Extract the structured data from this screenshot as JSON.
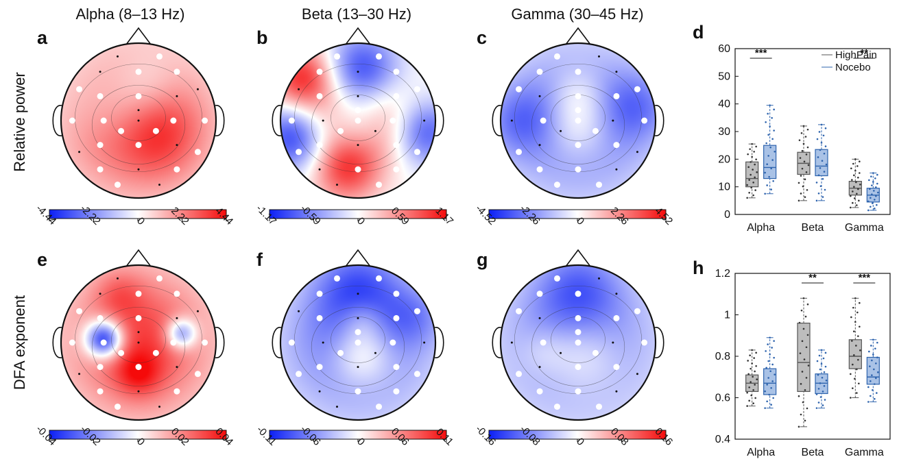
{
  "columns": [
    "Alpha (8–13 Hz)",
    "Beta (13–30 Hz)",
    "Gamma (30–45 Hz)"
  ],
  "rows": [
    "Relative power",
    "DFA exponent"
  ],
  "topomaps": [
    {
      "letter": "a",
      "band": "Alpha",
      "cmax": 4.44,
      "ticks": [
        "-4.44",
        "-2.22",
        "0",
        "2.22",
        "4.44"
      ],
      "blobs": [
        [
          0,
          0,
          3.2,
          0.95
        ],
        [
          0.25,
          0.2,
          1.4,
          0.3
        ],
        [
          -0.25,
          -0.05,
          -1.5,
          0.28
        ],
        [
          0.12,
          -0.45,
          -1.2,
          0.18
        ],
        [
          -0.5,
          0.25,
          0.5,
          0.25
        ]
      ]
    },
    {
      "letter": "b",
      "band": "Beta",
      "cmax": 1.17,
      "ticks": [
        "-1.17",
        "-0.59",
        "0",
        "0.59",
        "1.17"
      ],
      "blobs": [
        [
          -0.72,
          -0.55,
          1.0,
          0.18
        ],
        [
          0.05,
          -0.68,
          -0.9,
          0.22
        ],
        [
          -0.15,
          0.6,
          0.95,
          0.2
        ],
        [
          -0.82,
          0.2,
          -1.05,
          0.2
        ],
        [
          0.85,
          0.15,
          -0.9,
          0.18
        ],
        [
          0.35,
          0.05,
          0.55,
          0.25
        ],
        [
          -0.45,
          0.0,
          0.4,
          0.2
        ],
        [
          0.0,
          0.1,
          -0.35,
          0.15
        ]
      ]
    },
    {
      "letter": "c",
      "band": "Gamma",
      "cmax": 4.52,
      "ticks": [
        "-4.52",
        "-2.26",
        "0",
        "2.26",
        "4.52"
      ],
      "blobs": [
        [
          0,
          0,
          -3.9,
          0.8
        ],
        [
          0,
          0.1,
          3.0,
          0.22
        ],
        [
          0,
          -0.35,
          1.8,
          0.15
        ],
        [
          -0.8,
          0.0,
          -1.5,
          0.2
        ],
        [
          0.8,
          -0.2,
          -1.5,
          0.2
        ]
      ]
    },
    {
      "letter": "e",
      "band": "Alpha",
      "cmax": 0.04,
      "ticks": [
        "-0.04",
        "-0.02",
        "0",
        "0.02",
        "0.04"
      ],
      "blobs": [
        [
          0,
          0,
          0.032,
          0.95
        ],
        [
          -0.45,
          -0.05,
          -0.055,
          0.06
        ],
        [
          0.55,
          -0.12,
          -0.035,
          0.04
        ],
        [
          -0.25,
          -0.65,
          0.01,
          0.1
        ],
        [
          0.0,
          0.4,
          0.015,
          0.08
        ]
      ]
    },
    {
      "letter": "f",
      "band": "Beta",
      "cmax": 0.11,
      "ticks": [
        "-0.11",
        "-0.06",
        "0",
        "0.06",
        "0.11"
      ],
      "blobs": [
        [
          0,
          0,
          -0.085,
          0.85
        ],
        [
          0.05,
          0.15,
          0.075,
          0.18
        ],
        [
          0.05,
          -0.3,
          0.035,
          0.08
        ],
        [
          0,
          -0.75,
          -0.05,
          0.3
        ],
        [
          0.75,
          -0.35,
          -0.03,
          0.15
        ]
      ]
    },
    {
      "letter": "g",
      "band": "Gamma",
      "cmax": 0.16,
      "ticks": [
        "-0.16",
        "-0.08",
        "0",
        "0.08",
        "0.16"
      ],
      "blobs": [
        [
          0,
          0,
          -0.12,
          0.9
        ],
        [
          0.05,
          0.15,
          0.09,
          0.28
        ],
        [
          -0.45,
          0.1,
          0.03,
          0.1
        ],
        [
          0,
          -0.75,
          -0.06,
          0.28
        ]
      ]
    }
  ],
  "boxplots": {
    "legend": [
      "HighPain",
      "Nocebo"
    ],
    "colors": {
      "HighPain": "#555555",
      "Nocebo": "#2d63ad",
      "HighPainFill": "#bdbdbd",
      "NoceboFill": "#a9c2e6"
    },
    "panels": [
      {
        "letter": "d",
        "ylim": [
          0,
          60
        ],
        "yticks": [
          "0",
          "10",
          "20",
          "30",
          "40",
          "50",
          "60"
        ],
        "categories": [
          "Alpha",
          "Beta",
          "Gamma"
        ],
        "series": [
          {
            "name": "HighPain",
            "boxes": [
              {
                "q1": 10,
                "med": 13,
                "q3": 19,
                "wlo": 6,
                "whi": 25.5
              },
              {
                "q1": 14.5,
                "med": 18.5,
                "q3": 22.5,
                "wlo": 5,
                "whi": 32
              },
              {
                "q1": 7,
                "med": 9.5,
                "q3": 12,
                "wlo": 2.5,
                "whi": 20
              }
            ]
          },
          {
            "name": "Nocebo",
            "boxes": [
              {
                "q1": 13,
                "med": 17,
                "q3": 25,
                "wlo": 7.5,
                "whi": 39.5
              },
              {
                "q1": 14,
                "med": 17.5,
                "q3": 23.5,
                "wlo": 5,
                "whi": 32.5
              },
              {
                "q1": 4.5,
                "med": 7,
                "q3": 9.5,
                "wlo": 1.5,
                "whi": 15
              }
            ]
          }
        ],
        "sig": [
          {
            "cat": 0,
            "label": "***"
          },
          {
            "cat": 2,
            "label": "**"
          }
        ]
      },
      {
        "letter": "h",
        "ylim": [
          0.4,
          1.2
        ],
        "yticks": [
          "0.4",
          "0.6",
          "0.8",
          "1",
          "1.2"
        ],
        "categories": [
          "Alpha",
          "Beta",
          "Gamma"
        ],
        "series": [
          {
            "name": "HighPain",
            "boxes": [
              {
                "q1": 0.63,
                "med": 0.67,
                "q3": 0.71,
                "wlo": 0.56,
                "whi": 0.83
              },
              {
                "q1": 0.63,
                "med": 0.77,
                "q3": 0.96,
                "wlo": 0.46,
                "whi": 1.08
              },
              {
                "q1": 0.74,
                "med": 0.8,
                "q3": 0.88,
                "wlo": 0.6,
                "whi": 1.08
              }
            ]
          },
          {
            "name": "Nocebo",
            "boxes": [
              {
                "q1": 0.615,
                "med": 0.67,
                "q3": 0.74,
                "wlo": 0.55,
                "whi": 0.89
              },
              {
                "q1": 0.62,
                "med": 0.67,
                "q3": 0.715,
                "wlo": 0.55,
                "whi": 0.83
              },
              {
                "q1": 0.665,
                "med": 0.7,
                "q3": 0.795,
                "wlo": 0.58,
                "whi": 0.88
              }
            ]
          }
        ],
        "sig": [
          {
            "cat": 1,
            "label": "**"
          },
          {
            "cat": 2,
            "label": "***"
          }
        ]
      }
    ]
  }
}
